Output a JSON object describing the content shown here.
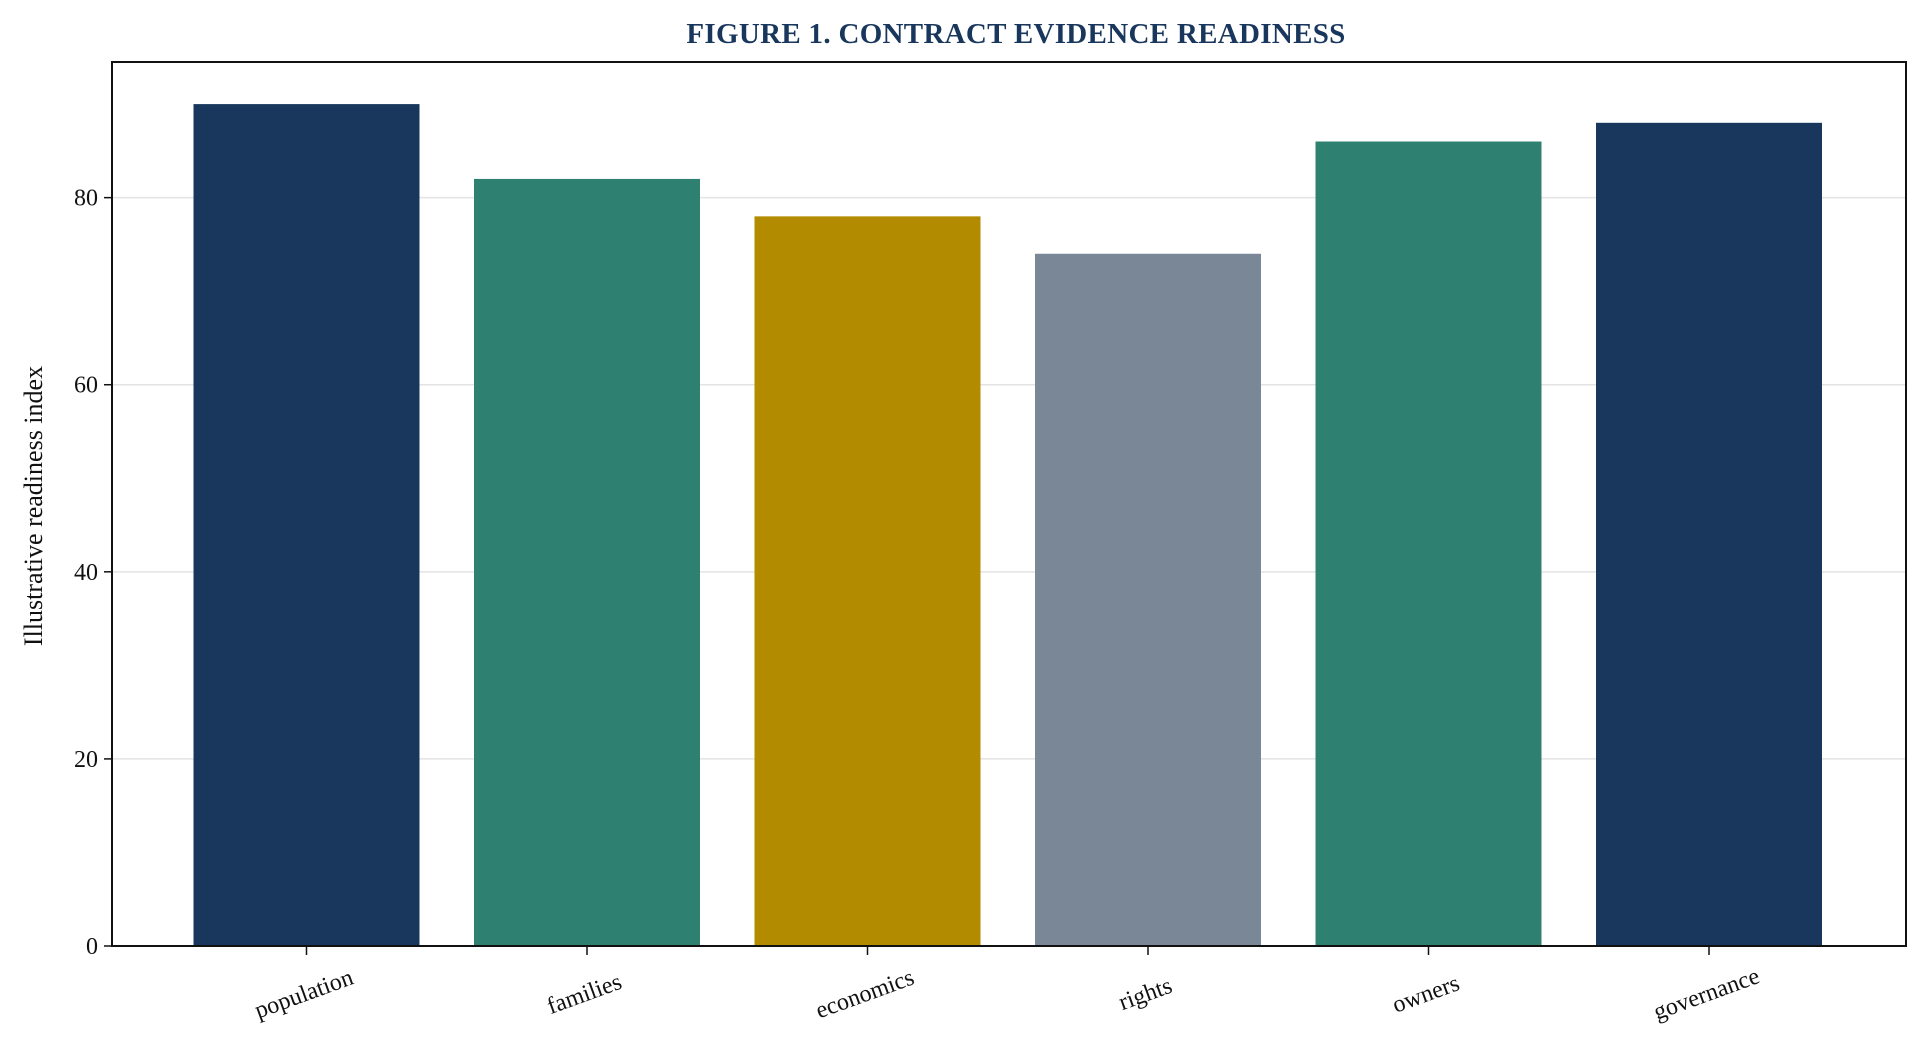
{
  "chart_data": {
    "type": "bar",
    "title": "FIGURE 1. CONTRACT EVIDENCE READINESS",
    "xlabel": "",
    "ylabel": "Illustrative readiness index",
    "categories": [
      "population",
      "families",
      "economics",
      "rights",
      "owners",
      "governance"
    ],
    "values": [
      90,
      82,
      78,
      74,
      86,
      88
    ],
    "bar_colors": [
      "#19375c",
      "#2e8170",
      "#b38b00",
      "#798796",
      "#2e8170",
      "#19375c"
    ],
    "ylim": [
      0,
      94.5
    ],
    "yticks": [
      0,
      20,
      40,
      60,
      80
    ],
    "grid": "horizontal",
    "legend": "none",
    "title_color": "#19375c"
  }
}
